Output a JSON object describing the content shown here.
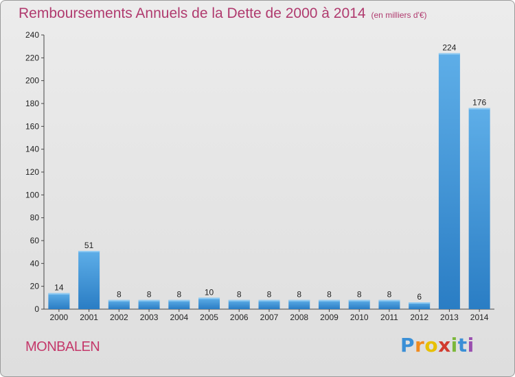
{
  "title": "Remboursements Annuels de la Dette de 2000 à 2014",
  "unit": "(en milliers d'€)",
  "commune": "MONBALEN",
  "brand": {
    "text": "Proxiti",
    "letters": [
      "P",
      "r",
      "o",
      "x",
      "i",
      "t",
      "i"
    ],
    "colors": [
      "#3a8fd6",
      "#f08a1e",
      "#e8c000",
      "#d13a2e",
      "#7cb83a",
      "#3a8fd6",
      "#9a4fb0"
    ]
  },
  "colors": {
    "bar_light": "#5eaee8",
    "bar_dark": "#2a7dc4",
    "title": "#b03a6e"
  },
  "chart_data": {
    "type": "bar",
    "title": "Remboursements Annuels de la Dette de 2000 à 2014",
    "ylabel": "en milliers d'€",
    "categories": [
      "2000",
      "2001",
      "2002",
      "2003",
      "2004",
      "2005",
      "2006",
      "2007",
      "2008",
      "2009",
      "2010",
      "2011",
      "2012",
      "2013",
      "2014"
    ],
    "values": [
      14,
      51,
      8,
      8,
      8,
      10,
      8,
      8,
      8,
      8,
      8,
      8,
      6,
      224,
      176
    ],
    "ylim": [
      0,
      240
    ],
    "yticks": [
      0,
      20,
      40,
      60,
      80,
      100,
      120,
      140,
      160,
      180,
      200,
      220,
      240
    ],
    "grid": false
  }
}
